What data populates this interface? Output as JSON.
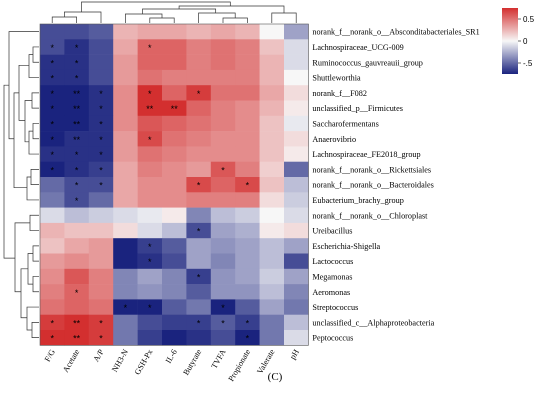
{
  "chart_data": {
    "type": "heatmap",
    "caption": "(C)",
    "rows": [
      "norank_f__norank_o__Absconditabacteriales_SR1",
      "Lachnospiraceae_UCG-009",
      "Ruminococcus_gauvreauii_group",
      "Shuttleworthia",
      "norank_f__F082",
      "unclassified_p__Firmicutes",
      "Saccharofermentans",
      "Anaerovibrio",
      "Lachnospiraceae_FE2018_group",
      "norank_f__norank_o__Rickettsiales",
      "norank_f__norank_o__Bacteroidales",
      "Eubacterium_brachy_group",
      "norank_f__norank_o__Chloroplast",
      "Ureibacillus",
      "Escherichia-Shigella",
      "Lactococcus",
      "Megamonas",
      "Aeromonas",
      "Streptococcus",
      "unclassified_c__Alphaproteobacteria",
      "Peptococcus"
    ],
    "columns": [
      "F/G",
      "Acetate",
      "A/P",
      "NH3-N",
      "GSH-Px",
      "IL-6",
      "Butyrate",
      "TVFA",
      "Propionate",
      "Valerate",
      "pH"
    ],
    "values": [
      [
        -0.6,
        -0.6,
        -0.55,
        0.25,
        0.3,
        0.3,
        0.25,
        0.3,
        0.25,
        0.0,
        -0.3
      ],
      [
        -0.6,
        -0.7,
        -0.6,
        0.3,
        0.55,
        0.55,
        0.45,
        0.5,
        0.45,
        0.2,
        -0.1
      ],
      [
        -0.7,
        -0.7,
        -0.6,
        0.35,
        0.55,
        0.55,
        0.45,
        0.5,
        0.45,
        0.25,
        -0.1
      ],
      [
        -0.7,
        -0.7,
        -0.6,
        0.35,
        0.5,
        0.45,
        0.45,
        0.45,
        0.45,
        0.25,
        0.0
      ],
      [
        -0.75,
        -0.75,
        -0.7,
        0.4,
        0.75,
        0.55,
        0.7,
        0.5,
        0.5,
        0.3,
        0.1
      ],
      [
        -0.75,
        -0.75,
        -0.7,
        0.4,
        0.85,
        0.85,
        0.55,
        0.45,
        0.4,
        0.25,
        0.05
      ],
      [
        -0.75,
        -0.75,
        -0.7,
        0.4,
        0.6,
        0.55,
        0.5,
        0.45,
        0.4,
        0.2,
        -0.05
      ],
      [
        -0.75,
        -0.7,
        -0.7,
        0.35,
        0.65,
        0.5,
        0.45,
        0.4,
        0.4,
        0.2,
        0.1
      ],
      [
        -0.7,
        -0.7,
        -0.7,
        0.35,
        0.5,
        0.45,
        0.4,
        0.4,
        0.4,
        0.2,
        0.05
      ],
      [
        -0.75,
        -0.7,
        -0.65,
        0.3,
        0.45,
        0.4,
        0.35,
        0.6,
        0.45,
        0.15,
        -0.5
      ],
      [
        -0.5,
        -0.6,
        -0.6,
        0.3,
        0.4,
        0.4,
        0.65,
        0.55,
        0.65,
        0.2,
        -0.2
      ],
      [
        -0.45,
        -0.6,
        -0.5,
        0.3,
        0.4,
        0.4,
        0.45,
        0.45,
        0.45,
        0.1,
        -0.15
      ],
      [
        -0.1,
        -0.2,
        -0.15,
        -0.1,
        -0.05,
        0.05,
        -0.4,
        -0.2,
        -0.15,
        0.0,
        -0.1
      ],
      [
        0.25,
        0.2,
        0.2,
        0.1,
        -0.1,
        -0.2,
        -0.6,
        -0.3,
        -0.25,
        0.05,
        0.1
      ],
      [
        0.2,
        0.3,
        0.35,
        -0.8,
        -0.65,
        -0.55,
        -0.3,
        -0.35,
        -0.3,
        -0.2,
        -0.3
      ],
      [
        0.35,
        0.4,
        0.35,
        -0.8,
        -0.7,
        -0.6,
        -0.3,
        -0.4,
        -0.3,
        -0.2,
        -0.6
      ],
      [
        0.4,
        0.6,
        0.45,
        -0.4,
        -0.3,
        -0.4,
        -0.65,
        -0.35,
        -0.3,
        -0.15,
        -0.3
      ],
      [
        0.45,
        0.55,
        0.45,
        -0.4,
        -0.35,
        -0.4,
        -0.55,
        -0.35,
        -0.35,
        -0.2,
        -0.4
      ],
      [
        0.5,
        0.55,
        0.5,
        -0.8,
        -0.75,
        -0.55,
        -0.45,
        -0.8,
        -0.55,
        -0.3,
        -0.45
      ],
      [
        0.7,
        0.75,
        0.7,
        -0.45,
        -0.6,
        -0.65,
        -0.65,
        -0.55,
        -0.65,
        -0.45,
        -0.2
      ],
      [
        0.75,
        0.75,
        0.7,
        -0.45,
        -0.65,
        -0.75,
        -0.7,
        -0.6,
        -0.75,
        -0.45,
        -0.1
      ]
    ],
    "significance": [
      [
        "",
        "",
        "",
        "",
        "",
        "",
        "",
        "",
        "",
        "",
        ""
      ],
      [
        "*",
        "*",
        "",
        "",
        "*",
        "",
        "",
        "",
        "",
        "",
        ""
      ],
      [
        "*",
        "*",
        "",
        "",
        "",
        "",
        "",
        "",
        "",
        "",
        ""
      ],
      [
        "*",
        "*",
        "",
        "",
        "",
        "",
        "",
        "",
        "",
        "",
        ""
      ],
      [
        "*",
        "**",
        "*",
        "",
        "*",
        "",
        "*",
        "",
        "",
        "",
        ""
      ],
      [
        "*",
        "**",
        "*",
        "",
        "**",
        "**",
        "",
        "",
        "",
        "",
        ""
      ],
      [
        "*",
        "**",
        "*",
        "",
        "",
        "",
        "",
        "",
        "",
        "",
        ""
      ],
      [
        "*",
        "**",
        "*",
        "",
        "*",
        "",
        "",
        "",
        "",
        "",
        ""
      ],
      [
        "*",
        "*",
        "*",
        "",
        "",
        "",
        "",
        "",
        "",
        "",
        ""
      ],
      [
        "*",
        "*",
        "*",
        "",
        "",
        "",
        "",
        "*",
        "",
        "",
        ""
      ],
      [
        "",
        "*",
        "*",
        "",
        "",
        "",
        "*",
        "",
        "*",
        "",
        ""
      ],
      [
        "",
        "*",
        "",
        "",
        "",
        "",
        "",
        "",
        "",
        "",
        ""
      ],
      [
        "",
        "",
        "",
        "",
        "",
        "",
        "",
        "",
        "",
        "",
        ""
      ],
      [
        "",
        "",
        "",
        "",
        "",
        "",
        "*",
        "",
        "",
        "",
        ""
      ],
      [
        "",
        "",
        "",
        "",
        "*",
        "",
        "",
        "",
        "",
        "",
        ""
      ],
      [
        "",
        "",
        "",
        "",
        "*",
        "",
        "",
        "",
        "",
        "",
        ""
      ],
      [
        "",
        "",
        "",
        "",
        "",
        "",
        "*",
        "",
        "",
        "",
        ""
      ],
      [
        "",
        "*",
        "",
        "",
        "",
        "",
        "",
        "",
        "",
        "",
        ""
      ],
      [
        "",
        "",
        "",
        "*",
        "*",
        "",
        "",
        "*",
        "",
        "",
        ""
      ],
      [
        "*",
        "**",
        "*",
        "",
        "",
        "",
        "*",
        "*",
        "*",
        "",
        ""
      ],
      [
        "*",
        "**",
        "*",
        "",
        "",
        "",
        "",
        "",
        "*",
        "",
        ""
      ]
    ],
    "scale": {
      "min": -0.75,
      "max": 0.75,
      "ticks": [
        0.5,
        0,
        -0.5
      ]
    },
    "colors": {
      "low": "#1a237e",
      "mid": "#f7f7f7",
      "high": "#d32f2f"
    }
  }
}
